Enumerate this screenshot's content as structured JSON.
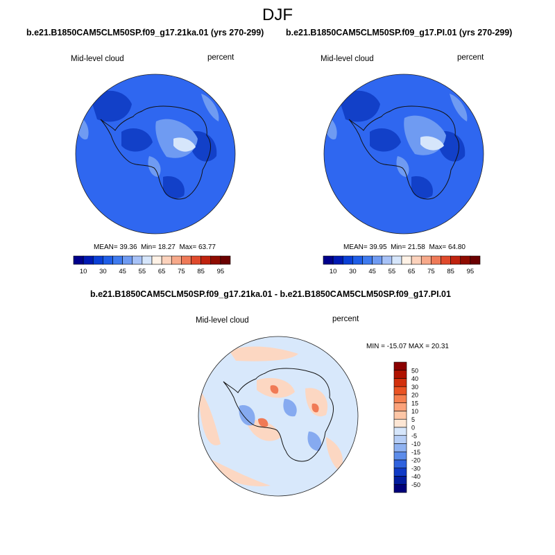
{
  "figure": {
    "title": "DJF"
  },
  "panels": [
    {
      "title": "b.e21.B1850CAM5CLM50SP.f09_g17.21ka.01 (yrs 270-299)",
      "variable": "Mid-level cloud",
      "units": "percent",
      "stats": {
        "mean_label": "MEAN=",
        "mean": "39.36",
        "min_label": "Min=",
        "min": "18.27",
        "max_label": "Max=",
        "max": "63.77"
      }
    },
    {
      "title": "b.e21.B1850CAM5CLM50SP.f09_g17.PI.01 (yrs 270-299)",
      "variable": "Mid-level cloud",
      "units": "percent",
      "stats": {
        "mean_label": "MEAN=",
        "mean": "39.95",
        "min_label": "Min=",
        "min": "21.58",
        "max_label": "Max=",
        "max": "64.80"
      }
    },
    {
      "title": "b.e21.B1850CAM5CLM50SP.f09_g17.21ka.01 - b.e21.B1850CAM5CLM50SP.f09_g17.PI.01",
      "variable": "Mid-level cloud",
      "units": "percent",
      "stats_text": "MIN = -15.07 MAX =  20.31"
    }
  ],
  "colorbar_horizontal": {
    "labels": [
      "10",
      "30",
      "45",
      "55",
      "65",
      "75",
      "85",
      "95"
    ],
    "colors": [
      "#00008b",
      "#0019b3",
      "#0a3fd6",
      "#1f5ee8",
      "#3f7bef",
      "#6f9bf2",
      "#a7c2f7",
      "#d6e6fb",
      "#fff2e6",
      "#fcd2bc",
      "#f7a98a",
      "#ef7a58",
      "#e04a2c",
      "#c0230f",
      "#8f0b00",
      "#6b0000"
    ]
  },
  "colorbar_vertical": {
    "labels": [
      "50",
      "40",
      "30",
      "20",
      "15",
      "10",
      "5",
      "0",
      "-5",
      "-10",
      "-15",
      "-20",
      "-30",
      "-40",
      "-50"
    ],
    "colors": [
      "#8b0000",
      "#b01200",
      "#d2300d",
      "#ea5323",
      "#f57f4f",
      "#fba27a",
      "#fdc6a6",
      "#fde6d4",
      "#d6e6fb",
      "#b6cef6",
      "#8fb2f1",
      "#5c8cea",
      "#2f62de",
      "#0f3ac6",
      "#021c9e",
      "#00007a"
    ]
  },
  "colors": {
    "field_blue": "#2f67f0",
    "field_blue_dark": "#1240c8",
    "diff_background": "#d8e8fb",
    "diff_warm": "#fcd7c2",
    "diff_red": "#f07a55",
    "diff_blue": "#86aaf0"
  }
}
